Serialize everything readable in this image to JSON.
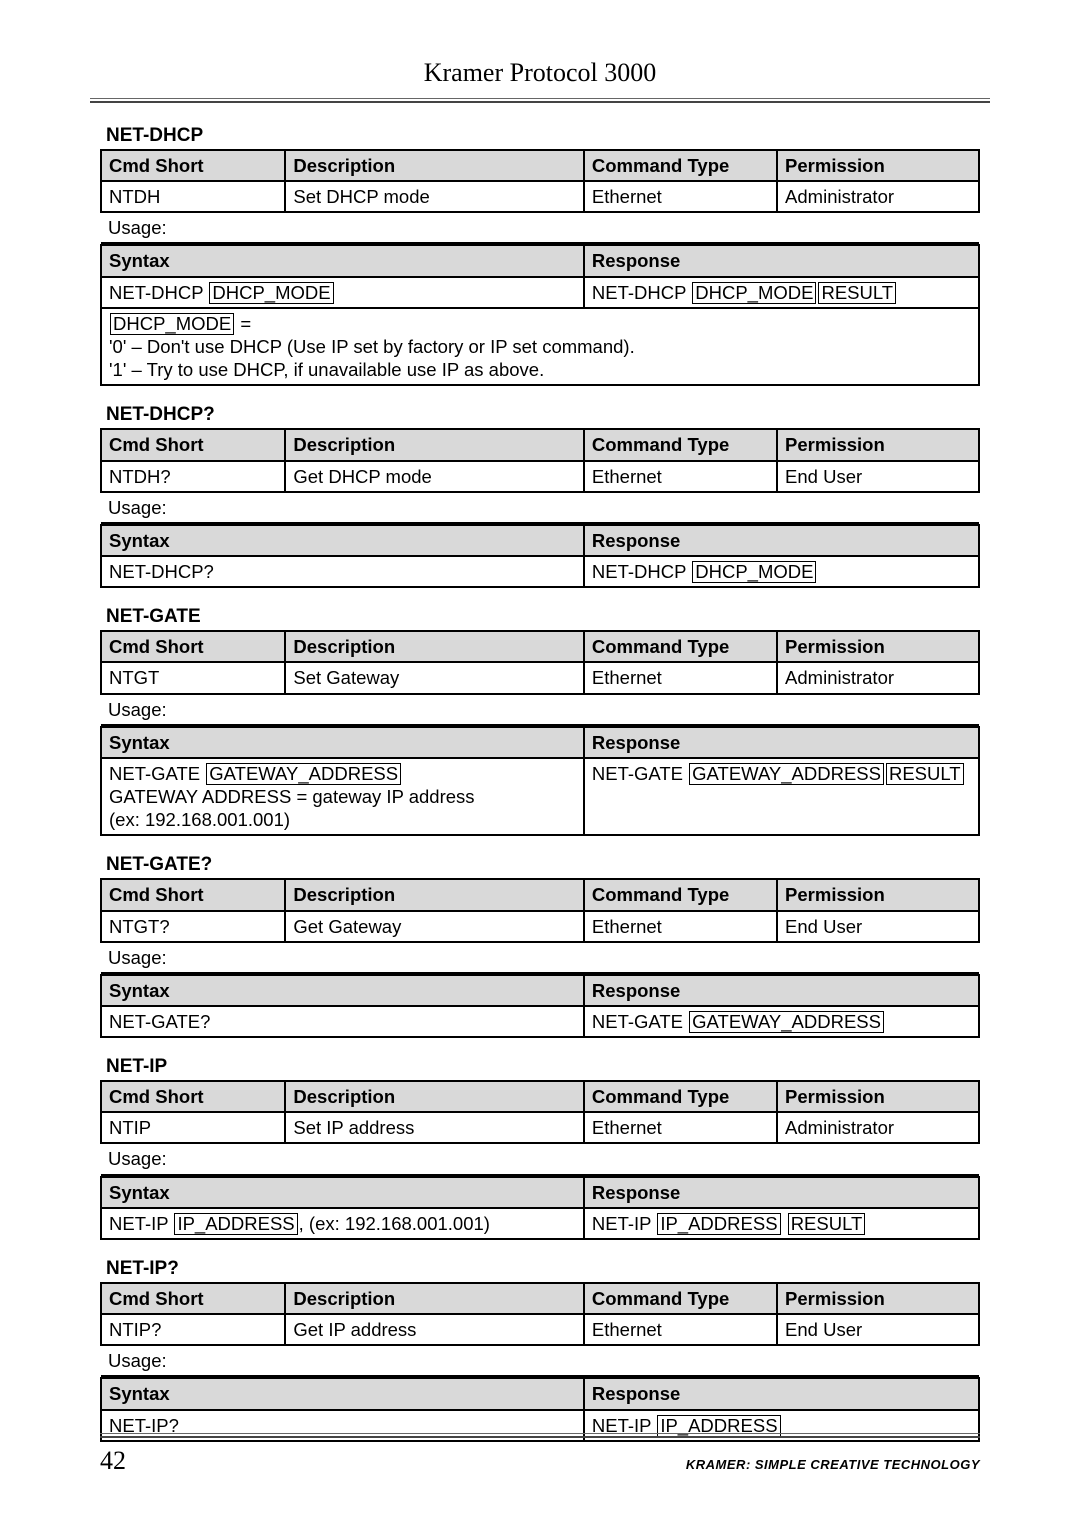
{
  "header": {
    "title": "Kramer Protocol 3000"
  },
  "footer": {
    "page": "42",
    "text": "KRAMER:  SIMPLE CREATIVE TECHNOLOGY"
  },
  "columns": {
    "cmd_short": "Cmd Short",
    "description": "Description",
    "command_type": "Command Type",
    "permission": "Permission",
    "syntax": "Syntax",
    "response": "Response",
    "usage": "Usage:"
  },
  "blocks": [
    {
      "title": "NET-DHCP",
      "row": {
        "short": "NTDH",
        "desc": "Set DHCP mode",
        "type": "Ethernet",
        "perm": "Administrator"
      },
      "syntax": {
        "cmd": "NET-DHCP",
        "param": "DHCP_MODE",
        "suffix": ""
      },
      "response": {
        "cmd": "NET-DHCP",
        "params": [
          "DHCP_MODE",
          "RESULT"
        ]
      },
      "notes": {
        "head_param": "DHCP_MODE",
        "head_after": " =",
        "lines": [
          "'0' – Don't use DHCP (Use IP set by factory or IP set command).",
          "'1' – Try to use DHCP, if unavailable use IP as above."
        ]
      }
    },
    {
      "title": "NET-DHCP?",
      "row": {
        "short": "NTDH?",
        "desc": "Get DHCP mode",
        "type": "Ethernet",
        "perm": "End User"
      },
      "syntax": {
        "cmd": "NET-DHCP?",
        "param": "",
        "suffix": ""
      },
      "response": {
        "cmd": "NET-DHCP",
        "params": [
          "DHCP_MODE"
        ]
      }
    },
    {
      "title": "NET-GATE",
      "row": {
        "short": "NTGT",
        "desc": "Set Gateway",
        "type": "Ethernet",
        "perm": "Administrator"
      },
      "syntax": {
        "cmd": "NET-GATE",
        "param": "GATEWAY_ADDRESS",
        "suffix": "",
        "extra_lines": [
          "GATEWAY ADDRESS = gateway IP address",
          "(ex: 192.168.001.001)"
        ]
      },
      "response": {
        "cmd": "NET-GATE",
        "params": [
          "GATEWAY_ADDRESS",
          "RESULT"
        ]
      }
    },
    {
      "title": "NET-GATE?",
      "row": {
        "short": "NTGT?",
        "desc": "Get Gateway",
        "type": "Ethernet",
        "perm": "End User"
      },
      "syntax": {
        "cmd": "NET-GATE?",
        "param": "",
        "suffix": ""
      },
      "response": {
        "cmd": "NET-GATE",
        "params": [
          "GATEWAY_ADDRESS"
        ]
      }
    },
    {
      "title": "NET-IP",
      "row": {
        "short": "NTIP",
        "desc": "Set IP address",
        "type": "Ethernet",
        "perm": "Administrator"
      },
      "syntax": {
        "cmd": "NET-IP",
        "param": "IP_ADDRESS",
        "suffix": ", (ex: 192.168.001.001)"
      },
      "response": {
        "cmd": "NET-IP",
        "params": [
          "IP_ADDRESS",
          "RESULT"
        ],
        "gap": true
      }
    },
    {
      "title": "NET-IP?",
      "row": {
        "short": "NTIP?",
        "desc": "Get IP address",
        "type": "Ethernet",
        "perm": "End User"
      },
      "syntax": {
        "cmd": "NET-IP?",
        "param": "",
        "suffix": ""
      },
      "response": {
        "cmd": "NET-IP",
        "params": [
          "IP_ADDRESS"
        ]
      }
    }
  ]
}
